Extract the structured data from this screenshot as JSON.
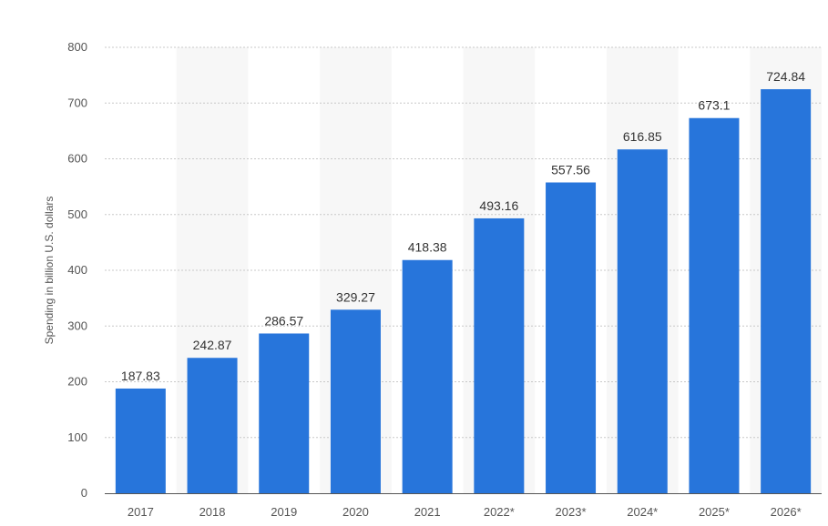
{
  "chart_data": {
    "type": "bar",
    "title": "",
    "xlabel": "",
    "ylabel": "Spending in billion U.S. dollars",
    "categories": [
      "2017",
      "2018",
      "2019",
      "2020",
      "2021",
      "2022*",
      "2023*",
      "2024*",
      "2025*",
      "2026*"
    ],
    "values": [
      187.83,
      242.87,
      286.57,
      329.27,
      418.38,
      493.16,
      557.56,
      616.85,
      673.1,
      724.84
    ],
    "data_labels": [
      "187.83",
      "242.87",
      "286.57",
      "329.27",
      "418.38",
      "493.16",
      "557.56",
      "616.85",
      "673.1",
      "724.84"
    ],
    "ylim": [
      0,
      800
    ],
    "yticks": [
      0,
      100,
      200,
      300,
      400,
      500,
      600,
      700,
      800
    ],
    "grid": true,
    "bar_color": "#2775db",
    "alt_band_color": "#f7f7f7"
  }
}
